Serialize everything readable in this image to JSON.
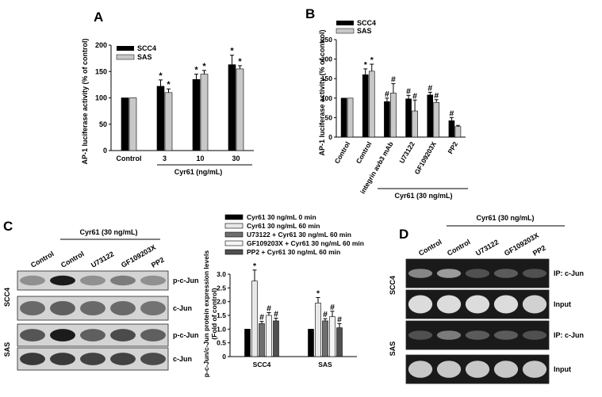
{
  "panels": {
    "A": {
      "letter": "A",
      "chart_data": {
        "type": "bar",
        "ylabel": "AP-1 luciferase activity (% of control)",
        "xlabel": "Cyr61 (ng/mL)",
        "ylim": [
          0,
          200
        ],
        "yticks": [
          "0",
          "50",
          "100",
          "150",
          "200"
        ],
        "categories": [
          "Control",
          "3",
          "10",
          "30"
        ],
        "series": [
          {
            "name": "SCC4",
            "color": "#000000",
            "values": [
              100,
              122,
              135,
              163
            ],
            "errors": [
              0,
              12,
              10,
              18
            ]
          },
          {
            "name": "SAS",
            "color": "#c8c8c8",
            "values": [
              100,
              110,
              145,
              155
            ],
            "errors": [
              0,
              7,
              7,
              6
            ]
          }
        ],
        "markers": [
          [
            "",
            "*",
            "*",
            "*"
          ],
          [
            "",
            "*",
            "*",
            "*"
          ]
        ],
        "legend": "top-left"
      }
    },
    "B": {
      "letter": "B",
      "chart_data": {
        "type": "bar",
        "ylabel": "AP-1 luciferase activity (% of control)",
        "group_label": "Cyr61 (30 ng/mL)",
        "ylim": [
          0,
          250
        ],
        "yticks": [
          "0",
          "50",
          "100",
          "150",
          "200",
          "250"
        ],
        "categories": [
          "Control",
          "Control",
          "integrin avb3 mAb",
          "U73122",
          "GF109203X",
          "PP2"
        ],
        "series": [
          {
            "name": "SCC4",
            "color": "#000000",
            "values": [
              100,
              160,
              91,
              98,
              108,
              42
            ],
            "errors": [
              0,
              15,
              9,
              9,
              7,
              8
            ]
          },
          {
            "name": "SAS",
            "color": "#c8c8c8",
            "values": [
              100,
              169,
              113,
              67,
              89,
              27
            ],
            "errors": [
              0,
              18,
              24,
              28,
              7,
              3
            ]
          }
        ],
        "markers": [
          [
            "",
            "*",
            "#",
            "#",
            "#",
            "#"
          ],
          [
            "",
            "*",
            "#",
            "#",
            "#",
            ""
          ]
        ],
        "legend": "top-left"
      }
    },
    "C": {
      "letter": "C",
      "blot": {
        "top_label": "Cyr61 (30 ng/mL)",
        "lanes": [
          "Control",
          "Control",
          "U73122",
          "GF109203X",
          "PP2"
        ],
        "cell_labels": [
          "SCC4",
          "SAS"
        ],
        "band_labels": [
          "p-c-Jun",
          "c-Jun",
          "p-c-Jun",
          "c-Jun"
        ]
      },
      "chart_data": {
        "type": "bar",
        "ylabel": "p-c-Jun/c-Jun protein expression levels (Fold of control)",
        "ylim": [
          0,
          3.0
        ],
        "yticks": [
          "0",
          "0.5",
          "1.0",
          "1.5",
          "2.0",
          "2.5",
          "3.0"
        ],
        "categories": [
          "SCC4",
          "SAS"
        ],
        "series": [
          {
            "name": "Cyr61 30 ng/mL 0 min",
            "color": "#000000",
            "values": [
              1.0,
              1.0
            ],
            "errors": [
              0,
              0
            ]
          },
          {
            "name": "Cyr61 30 ng/mL 60 min",
            "color": "#e8e8e8",
            "values": [
              2.75,
              1.95
            ],
            "errors": [
              0.4,
              0.2
            ]
          },
          {
            "name": "U73122 + Cyr61 30 ng/mL 60 min",
            "color": "#6e6e6e",
            "values": [
              1.2,
              1.3
            ],
            "errors": [
              0.08,
              0.08
            ]
          },
          {
            "name": "GF109203X + Cyr61 30 ng/mL 60 min",
            "color": "#f5f5f5",
            "values": [
              1.5,
              1.45
            ],
            "errors": [
              0.1,
              0.2
            ]
          },
          {
            "name": "PP2 + Cyr61 30 ng/mL 60 min",
            "color": "#505050",
            "values": [
              1.3,
              1.05
            ],
            "errors": [
              0.1,
              0.15
            ]
          }
        ],
        "markers": [
          [
            "",
            ""
          ],
          [
            "*",
            "*"
          ],
          [
            "#",
            "#"
          ],
          [
            "#",
            "#"
          ],
          [
            "#",
            "#"
          ]
        ],
        "legend": "top"
      }
    },
    "D": {
      "letter": "D",
      "blot": {
        "top_label": "Cyr61 (30 ng/mL)",
        "lanes": [
          "Control",
          "Control",
          "U73122",
          "GF109203X",
          "PP2"
        ],
        "cell_labels": [
          "SCC4",
          "SAS"
        ],
        "band_labels": [
          "IP: c-Jun",
          "Input",
          "IP: c-Jun",
          "Input"
        ]
      }
    }
  }
}
